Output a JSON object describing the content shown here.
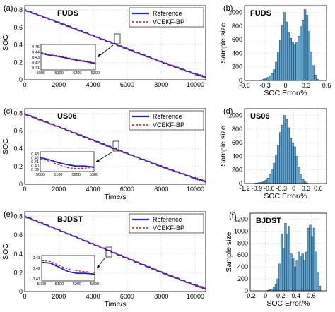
{
  "figure": {
    "rows": [
      {
        "left": {
          "panel_label": "(a)",
          "title": "FUDS",
          "xlabel": "",
          "ylabel": "SOC",
          "xticks": [
            "0",
            "2000",
            "4000",
            "6000",
            "8000",
            "10000"
          ],
          "yticks": [
            "0",
            "0.2",
            "0.4",
            "0.6",
            "0.8"
          ],
          "legend": [
            "Reference",
            "VCEKF-BP"
          ],
          "inset": {
            "xticks": [
              "5000",
              "5100",
              "5200",
              "5300"
            ],
            "yticks": [
              "0.45",
              "0.44",
              "0.43",
              "0.42",
              "0.41"
            ]
          }
        },
        "right": {
          "panel_label": "(b)",
          "title": "FUDS",
          "xlabel": "SOC Error/%",
          "ylabel": "Sample size",
          "xticks": [
            "-0.6",
            "-0.3",
            "0",
            "0.3",
            "0.6"
          ],
          "yticks": [
            "0",
            "200",
            "400",
            "600",
            "800",
            "1000"
          ]
        }
      },
      {
        "left": {
          "panel_label": "(c)",
          "title": "US06",
          "xlabel": "Time/s",
          "ylabel": "SOC",
          "xticks": [
            "0",
            "2000",
            "4000",
            "6000",
            "8000",
            "10000"
          ],
          "yticks": [
            "0",
            "0.2",
            "0.4",
            "0.6",
            "0.8"
          ],
          "legend": [
            "Reference",
            "VCEKF-BP"
          ],
          "inset": {
            "xticks": [
              "5000",
              "5100",
              "5200",
              "5300"
            ],
            "yticks": [
              "0.43",
              "0.42",
              "0.41",
              "0.40",
              "0.39"
            ]
          }
        },
        "right": {
          "panel_label": "(d)",
          "title": "US06",
          "xlabel": "SOC Error/%",
          "ylabel": "Sample size",
          "xticks": [
            "-1.2",
            "-0.9",
            "-0.6",
            "-0.3",
            "0",
            "0.3",
            "0.6"
          ],
          "yticks": [
            "0",
            "200",
            "400",
            "600",
            "800",
            "1000"
          ]
        }
      },
      {
        "left": {
          "panel_label": "(e)",
          "title": "BJDST",
          "xlabel": "Time/s",
          "ylabel": "SOC",
          "xticks": [
            "0",
            "2000",
            "4000",
            "6000",
            "8000",
            "10000"
          ],
          "yticks": [
            "0",
            "0.2",
            "0.4",
            "0.6",
            "0.8"
          ],
          "legend": [
            "Reference",
            "VCEKF-BP"
          ],
          "inset": {
            "xticks": [
              "5000",
              "5100",
              "5200",
              "5300"
            ],
            "yticks": [
              "0.43",
              "0.42",
              "0.41"
            ]
          }
        },
        "right": {
          "panel_label": "(f)",
          "title": "BJDST",
          "xlabel": "SOC Error/%",
          "ylabel": "Sample size",
          "xticks": [
            "-0.2",
            "0",
            "0.2",
            "0.4",
            "0.6"
          ],
          "yticks": [
            "0",
            "200",
            "400",
            "600",
            "800",
            "1000",
            "1200"
          ]
        }
      }
    ],
    "colors": {
      "reference": "#1f1fd6",
      "estimate": "#b22222",
      "bar_fill": "#5fa3cf",
      "bar_edge": "#16364f"
    }
  },
  "chart_data": [
    {
      "type": "line",
      "title": "FUDS",
      "ylabel": "SOC",
      "xlabel": "",
      "xlim": [
        0,
        10600
      ],
      "ylim": [
        0,
        0.85
      ],
      "grid": true,
      "legend": "top-right",
      "x": [
        0,
        2000,
        4000,
        6000,
        8000,
        10000,
        10600
      ],
      "series": [
        {
          "name": "Reference",
          "values": [
            0.8,
            0.655,
            0.505,
            0.355,
            0.205,
            0.065,
            0.03
          ]
        },
        {
          "name": "VCEKF-BP",
          "values": [
            0.8,
            0.655,
            0.506,
            0.356,
            0.206,
            0.066,
            0.031
          ]
        }
      ],
      "inset": {
        "xlim": [
          5000,
          5300
        ],
        "ylim": [
          0.41,
          0.45
        ],
        "x": [
          5000,
          5050,
          5100,
          5150,
          5200,
          5250,
          5300
        ],
        "series": [
          {
            "name": "Reference",
            "values": [
              0.436,
              0.433,
              0.431,
              0.428,
              0.425,
              0.423,
              0.42
            ]
          },
          {
            "name": "VCEKF-BP",
            "values": [
              0.438,
              0.434,
              0.432,
              0.429,
              0.426,
              0.424,
              0.421
            ]
          }
        ]
      }
    },
    {
      "type": "bar",
      "title": "FUDS",
      "xlabel": "SOC Error/%",
      "ylabel": "Sample size",
      "xlim": [
        -0.6,
        0.6
      ],
      "ylim": [
        0,
        1100
      ],
      "grid": true,
      "bin_width": 0.03,
      "bin_starts": [
        -0.39,
        -0.36,
        -0.33,
        -0.3,
        -0.27,
        -0.24,
        -0.21,
        -0.18,
        -0.15,
        -0.12,
        -0.09,
        -0.06,
        -0.03,
        0.0,
        0.03,
        0.06,
        0.09,
        0.12,
        0.15,
        0.18,
        0.21,
        0.24,
        0.27,
        0.3,
        0.33,
        0.36,
        0.39,
        0.42,
        0.45
      ],
      "values": [
        5,
        10,
        20,
        30,
        45,
        70,
        100,
        160,
        270,
        420,
        600,
        810,
        1000,
        860,
        700,
        620,
        560,
        520,
        560,
        650,
        790,
        880,
        1040,
        960,
        720,
        420,
        220,
        80,
        20
      ]
    },
    {
      "type": "line",
      "title": "US06",
      "ylabel": "SOC",
      "xlabel": "Time/s",
      "xlim": [
        0,
        10600
      ],
      "ylim": [
        0,
        0.85
      ],
      "grid": true,
      "legend": "top-right",
      "x": [
        0,
        2000,
        4000,
        6000,
        8000,
        10000,
        10600
      ],
      "series": [
        {
          "name": "Reference",
          "values": [
            0.79,
            0.645,
            0.495,
            0.345,
            0.2,
            0.065,
            0.03
          ]
        },
        {
          "name": "VCEKF-BP",
          "values": [
            0.79,
            0.643,
            0.493,
            0.343,
            0.198,
            0.063,
            0.028
          ]
        }
      ],
      "inset": {
        "xlim": [
          5000,
          5300
        ],
        "ylim": [
          0.39,
          0.43
        ],
        "x": [
          5000,
          5050,
          5100,
          5150,
          5200,
          5250,
          5300
        ],
        "series": [
          {
            "name": "Reference",
            "values": [
              0.418,
              0.414,
              0.408,
              0.404,
              0.401,
              0.401,
              0.399
            ]
          },
          {
            "name": "VCEKF-BP",
            "values": [
              0.416,
              0.411,
              0.404,
              0.398,
              0.396,
              0.397,
              0.398
            ]
          }
        ]
      }
    },
    {
      "type": "bar",
      "title": "US06",
      "xlabel": "SOC Error/%",
      "ylabel": "Sample size",
      "xlim": [
        -1.2,
        0.8
      ],
      "ylim": [
        0,
        1100
      ],
      "grid": true,
      "bin_width": 0.05,
      "bin_starts": [
        -0.95,
        -0.9,
        -0.85,
        -0.8,
        -0.75,
        -0.7,
        -0.65,
        -0.6,
        -0.55,
        -0.5,
        -0.45,
        -0.4,
        -0.35,
        -0.3,
        -0.25,
        -0.2,
        -0.15,
        -0.1,
        -0.05,
        0.0,
        0.05,
        0.1,
        0.15,
        0.2,
        0.25,
        0.3
      ],
      "values": [
        5,
        10,
        15,
        20,
        30,
        50,
        80,
        130,
        200,
        300,
        420,
        560,
        750,
        860,
        1000,
        940,
        820,
        660,
        600,
        540,
        400,
        240,
        130,
        60,
        25,
        10
      ]
    },
    {
      "type": "line",
      "title": "BJDST",
      "ylabel": "SOC",
      "xlabel": "Time/s",
      "xlim": [
        0,
        10600
      ],
      "ylim": [
        0,
        0.85
      ],
      "grid": true,
      "legend": "top-right",
      "x": [
        0,
        2000,
        4000,
        6000,
        8000,
        10000,
        10600
      ],
      "series": [
        {
          "name": "Reference",
          "values": [
            0.8,
            0.655,
            0.505,
            0.355,
            0.205,
            0.065,
            0.03
          ]
        },
        {
          "name": "VCEKF-BP",
          "values": [
            0.8,
            0.656,
            0.507,
            0.357,
            0.207,
            0.067,
            0.032
          ]
        }
      ],
      "inset": {
        "xlim": [
          5000,
          5300
        ],
        "ylim": [
          0.405,
          0.435
        ],
        "x": [
          5000,
          5050,
          5100,
          5150,
          5200,
          5250,
          5300
        ],
        "series": [
          {
            "name": "Reference",
            "values": [
              0.427,
              0.426,
              0.421,
              0.416,
              0.414,
              0.414,
              0.413
            ]
          },
          {
            "name": "VCEKF-BP",
            "values": [
              0.429,
              0.428,
              0.423,
              0.419,
              0.417,
              0.416,
              0.415
            ]
          }
        ]
      }
    },
    {
      "type": "bar",
      "title": "BJDST",
      "xlabel": "SOC Error/%",
      "ylabel": "Sample size",
      "xlim": [
        -0.2,
        0.8
      ],
      "ylim": [
        0,
        1300
      ],
      "grid": true,
      "bin_width": 0.025,
      "bin_starts": [
        0.025,
        0.05,
        0.075,
        0.1,
        0.125,
        0.15,
        0.175,
        0.2,
        0.225,
        0.25,
        0.275,
        0.3,
        0.325,
        0.35,
        0.375,
        0.4,
        0.425,
        0.45,
        0.475,
        0.5,
        0.525,
        0.55,
        0.575,
        0.6,
        0.625,
        0.65,
        0.675,
        0.7
      ],
      "values": [
        10,
        20,
        30,
        60,
        110,
        200,
        450,
        950,
        700,
        1130,
        950,
        1080,
        620,
        550,
        400,
        500,
        650,
        580,
        620,
        500,
        650,
        1050,
        1100,
        900,
        1050,
        650,
        300,
        80
      ]
    }
  ]
}
